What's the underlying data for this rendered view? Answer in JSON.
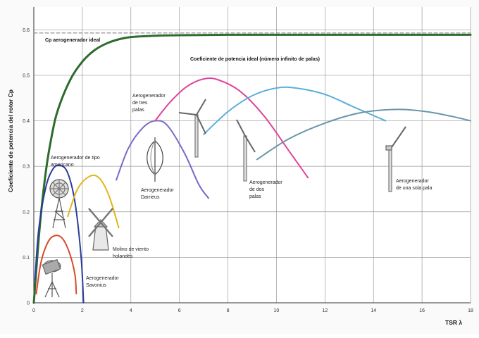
{
  "chart_data": {
    "type": "line",
    "xlabel": "TSR λ",
    "ylabel": "Coeficiente de potencia del rotor Cp",
    "xlim": [
      0,
      18
    ],
    "ylim": [
      0,
      0.65
    ],
    "x_ticks": [
      0,
      2,
      4,
      6,
      8,
      10,
      12,
      14,
      16,
      18
    ],
    "y_ticks": [
      0,
      0.1,
      0.2,
      0.3,
      0.4,
      0.5,
      0.6
    ],
    "x_tick_labels": [
      "0",
      "2",
      "4",
      "6",
      "8",
      "10",
      "12",
      "14",
      "16",
      "18"
    ],
    "y_tick_labels": [
      "0",
      "0.1",
      "0.2",
      "0.3",
      "0.4",
      "0.5",
      "0.6"
    ],
    "grid": true,
    "series": [
      {
        "key": "ideal_limit",
        "color": "#777777",
        "dashed": true,
        "points": [
          [
            0,
            0.593
          ],
          [
            18,
            0.593
          ]
        ]
      },
      {
        "key": "ideal",
        "color": "#2e6b2e",
        "points": [
          [
            0,
            0
          ],
          [
            0.25,
            0.17
          ],
          [
            0.5,
            0.29
          ],
          [
            0.75,
            0.37
          ],
          [
            1,
            0.425
          ],
          [
            1.5,
            0.49
          ],
          [
            2,
            0.53
          ],
          [
            2.5,
            0.555
          ],
          [
            3,
            0.57
          ],
          [
            3.5,
            0.579
          ],
          [
            4,
            0.584
          ],
          [
            5,
            0.587
          ],
          [
            6,
            0.588
          ],
          [
            8,
            0.589
          ],
          [
            10,
            0.589
          ],
          [
            12,
            0.589
          ],
          [
            14,
            0.589
          ],
          [
            16,
            0.589
          ],
          [
            18,
            0.589
          ]
        ]
      },
      {
        "key": "savonius",
        "color": "#d94a2a",
        "points": [
          [
            0.1,
            0.02
          ],
          [
            0.3,
            0.09
          ],
          [
            0.6,
            0.135
          ],
          [
            0.9,
            0.148
          ],
          [
            1.2,
            0.14
          ],
          [
            1.5,
            0.105
          ],
          [
            1.7,
            0.06
          ],
          [
            1.75,
            0.02
          ]
        ]
      },
      {
        "key": "americano",
        "color": "#2a3d9c",
        "points": [
          [
            0.05,
            0.05
          ],
          [
            0.2,
            0.16
          ],
          [
            0.5,
            0.255
          ],
          [
            0.8,
            0.295
          ],
          [
            1.1,
            0.302
          ],
          [
            1.4,
            0.285
          ],
          [
            1.7,
            0.22
          ],
          [
            1.95,
            0.1
          ],
          [
            2.05,
            0.0
          ]
        ]
      },
      {
        "key": "holandes",
        "color": "#e0b51f",
        "points": [
          [
            1.4,
            0.19
          ],
          [
            1.8,
            0.25
          ],
          [
            2.3,
            0.278
          ],
          [
            2.7,
            0.274
          ],
          [
            3.1,
            0.235
          ],
          [
            3.5,
            0.165
          ]
        ]
      },
      {
        "key": "darrieus",
        "color": "#7a68c8",
        "points": [
          [
            3.4,
            0.27
          ],
          [
            3.9,
            0.34
          ],
          [
            4.5,
            0.385
          ],
          [
            5.0,
            0.4
          ],
          [
            5.5,
            0.39
          ],
          [
            6.2,
            0.33
          ],
          [
            6.8,
            0.26
          ],
          [
            7.2,
            0.23
          ]
        ]
      },
      {
        "key": "tres_palas",
        "color": "#e0449a",
        "points": [
          [
            5.0,
            0.4
          ],
          [
            5.6,
            0.44
          ],
          [
            6.3,
            0.475
          ],
          [
            7.0,
            0.492
          ],
          [
            7.6,
            0.49
          ],
          [
            8.5,
            0.465
          ],
          [
            9.5,
            0.41
          ],
          [
            10.5,
            0.335
          ],
          [
            11.3,
            0.275
          ]
        ]
      },
      {
        "key": "dos_palas",
        "color": "#5aaedb",
        "points": [
          [
            7.0,
            0.37
          ],
          [
            8.0,
            0.42
          ],
          [
            9.0,
            0.455
          ],
          [
            10.0,
            0.472
          ],
          [
            10.8,
            0.472
          ],
          [
            12.0,
            0.458
          ],
          [
            13.2,
            0.43
          ],
          [
            14.5,
            0.4
          ]
        ]
      },
      {
        "key": "una_pala",
        "color": "#6a95aa",
        "points": [
          [
            9.2,
            0.315
          ],
          [
            10.5,
            0.36
          ],
          [
            12.0,
            0.395
          ],
          [
            13.5,
            0.418
          ],
          [
            15.0,
            0.425
          ],
          [
            16.2,
            0.42
          ],
          [
            17.2,
            0.41
          ],
          [
            18.0,
            0.4
          ]
        ]
      }
    ],
    "annotations": [
      {
        "key": "ideal_limit_label",
        "text": "Cp aerogenerador ideal"
      },
      {
        "key": "ideal_label",
        "text": "Coeficiente de potencia ideal (número infinito de palas)"
      },
      {
        "key": "americano_l1",
        "text": "Aerogenerador de tipo"
      },
      {
        "key": "americano_l2",
        "text": "americano"
      },
      {
        "key": "tres_l1",
        "text": "Aerogenerador"
      },
      {
        "key": "tres_l2",
        "text": "de tres"
      },
      {
        "key": "tres_l3",
        "text": "palas"
      },
      {
        "key": "darrieus_l1",
        "text": "Aerogenerador"
      },
      {
        "key": "darrieus_l2",
        "text": "Darrieus"
      },
      {
        "key": "dos_l1",
        "text": "Aerogenerador"
      },
      {
        "key": "dos_l2",
        "text": "de dos"
      },
      {
        "key": "dos_l3",
        "text": "palas"
      },
      {
        "key": "una_l1",
        "text": "Aerogenerador"
      },
      {
        "key": "una_l2",
        "text": "de una sola pala"
      },
      {
        "key": "holandes_l1",
        "text": "Molino de viento"
      },
      {
        "key": "holandes_l2",
        "text": "holandés"
      },
      {
        "key": "savonius_l1",
        "text": "Aerogenerador"
      },
      {
        "key": "savonius_l2",
        "text": "Savonius"
      }
    ],
    "icons": [
      "savonius-icon",
      "multiblade-windmill-icon",
      "dutch-windmill-icon",
      "darrieus-icon",
      "three-blade-turbine-icon",
      "two-blade-turbine-icon",
      "one-blade-turbine-icon"
    ]
  }
}
